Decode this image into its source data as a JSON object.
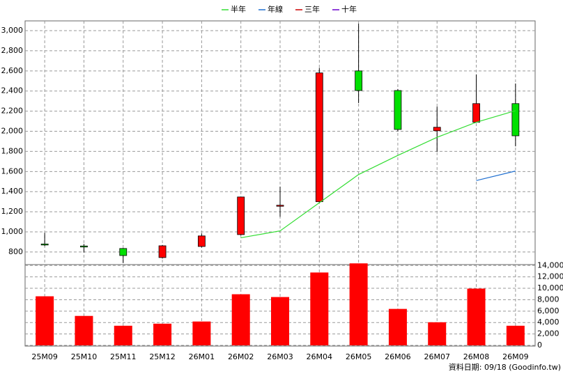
{
  "chart_data": [
    {
      "type": "candlestick",
      "categories": [
        "25M09",
        "25M10",
        "25M11",
        "25M12",
        "26M01",
        "26M02",
        "26M03",
        "26M04",
        "26M05",
        "26M06",
        "26M07",
        "26M08",
        "26M09"
      ],
      "open": [
        880,
        860,
        835,
        745,
        855,
        973,
        1260,
        1300,
        2600,
        2405,
        2005,
        2090,
        2275
      ],
      "high": [
        990,
        880,
        840,
        870,
        985,
        1350,
        1450,
        2630,
        3070,
        2420,
        2245,
        2565,
        2475
      ],
      "low": [
        860,
        795,
        690,
        735,
        845,
        965,
        1150,
        1290,
        2280,
        2000,
        1795,
        2085,
        1850
      ],
      "close": [
        878,
        850,
        765,
        862,
        960,
        1347,
        1265,
        2580,
        2405,
        2018,
        2040,
        2275,
        1955
      ],
      "up_color": "#ff0000",
      "down_color": "#00e000",
      "series": [
        {
          "name": "半年",
          "color": "#33dd33",
          "values": [
            null,
            null,
            null,
            null,
            null,
            942,
            1010,
            1290,
            1570,
            1760,
            1940,
            2090,
            2205
          ]
        },
        {
          "name": "年線",
          "color": "#1f6fd0",
          "values": [
            null,
            null,
            null,
            null,
            null,
            null,
            null,
            null,
            null,
            null,
            null,
            1510,
            1605
          ]
        },
        {
          "name": "三年",
          "color": "#cc0000",
          "values": [
            null,
            null,
            null,
            null,
            null,
            null,
            null,
            null,
            null,
            null,
            null,
            null,
            null
          ]
        },
        {
          "name": "十年",
          "color": "#6a00cc",
          "values": [
            null,
            null,
            null,
            null,
            null,
            null,
            null,
            null,
            null,
            null,
            null,
            null,
            null
          ]
        }
      ],
      "ylim": [
        675,
        3097
      ],
      "yticks": [
        {
          "value": 800,
          "label": "800"
        },
        {
          "value": 1000,
          "label": "1,000"
        },
        {
          "value": 1200,
          "label": "1,200"
        },
        {
          "value": 1400,
          "label": "1,400"
        },
        {
          "value": 1600,
          "label": "1,600"
        },
        {
          "value": 1800,
          "label": "1,800"
        },
        {
          "value": 2000,
          "label": "2,000"
        },
        {
          "value": 2200,
          "label": "2,200"
        },
        {
          "value": 2400,
          "label": "2,400"
        },
        {
          "value": 2600,
          "label": "2,600"
        },
        {
          "value": 2800,
          "label": "2,800"
        },
        {
          "value": 3000,
          "label": "3,000"
        }
      ],
      "grid": true,
      "annotation": "資料日期: 09/18  (Goodinfo.tw)"
    },
    {
      "type": "bar",
      "values": [
        8600,
        5160,
        3440,
        3800,
        4180,
        8960,
        8470,
        12770,
        14370,
        6390,
        4050,
        9950,
        3440
      ],
      "color": "#ff0000",
      "ylim": [
        0,
        14400
      ],
      "yticks": [
        0,
        {
          "value": 2000,
          "label": "2,000"
        },
        {
          "value": 4000,
          "label": "4,000"
        },
        {
          "value": 6000,
          "label": "6,000"
        },
        {
          "value": 8000,
          "label": "8,000"
        },
        {
          "value": 10000,
          "label": "10,000"
        },
        {
          "value": 12000,
          "label": "12,000"
        },
        {
          "value": 14000,
          "label": "14,000"
        }
      ],
      "grid": true
    }
  ]
}
